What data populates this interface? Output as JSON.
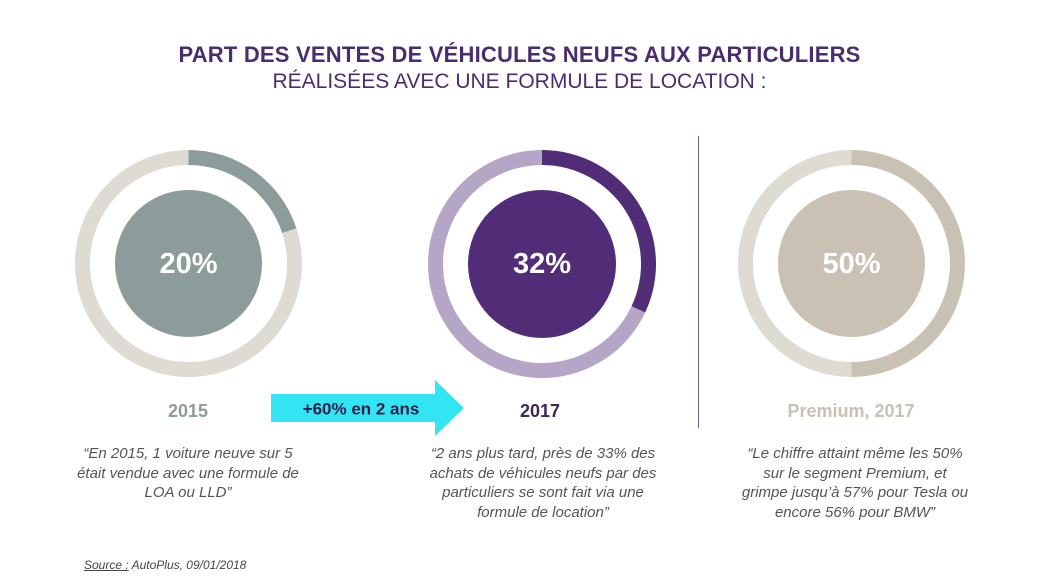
{
  "title": "PART DES VENTES DE VÉHICULES NEUFS AUX PARTICULIERS",
  "subtitle": "RÉALISÉES AVEC UNE FORMULE DE LOCATION :",
  "chart_data": [
    {
      "type": "pie",
      "label": "2015",
      "value": 20,
      "value_label": "20%",
      "highlight_color": "#8c9c9b",
      "remainder_color": "#dedbd3",
      "label_color": "#8c9c9b",
      "quote": "“En 2015, 1 voiture neuve sur 5 était vendue avec une formule de LOA ou LLD”"
    },
    {
      "type": "pie",
      "label": "2017",
      "value": 32,
      "value_label": "32%",
      "highlight_color": "#512d78",
      "remainder_color": "#b5a6c8",
      "label_color": "#3c2758",
      "quote": "“2 ans plus tard, près de 33% des achats de véhicules neufs par des particuliers se sont fait via une formule de location”"
    },
    {
      "type": "pie",
      "label": "Premium, 2017",
      "value": 50,
      "value_label": "50%",
      "highlight_color": "#c8c1b4",
      "remainder_color": "#dedbd3",
      "label_color": "#c8c1b4",
      "quote": "“Le chiffre attaint même les 50% sur le segment Premium, et grimpe jusqu’à 57% pour Tesla ou encore 56% pour BMW”"
    }
  ],
  "arrow": {
    "text": "+60% en 2 ans",
    "color": "#33e5f2"
  },
  "source": {
    "label": "Source :",
    "text": " AutoPlus,  09/01/2018"
  }
}
